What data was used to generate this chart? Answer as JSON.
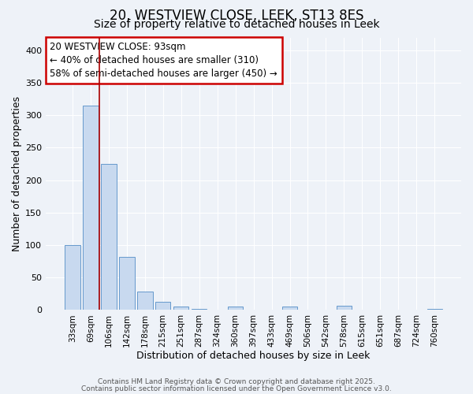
{
  "title": "20, WESTVIEW CLOSE, LEEK, ST13 8ES",
  "subtitle": "Size of property relative to detached houses in Leek",
  "xlabel": "Distribution of detached houses by size in Leek",
  "ylabel": "Number of detached properties",
  "categories": [
    "33sqm",
    "69sqm",
    "106sqm",
    "142sqm",
    "178sqm",
    "215sqm",
    "251sqm",
    "287sqm",
    "324sqm",
    "360sqm",
    "397sqm",
    "433sqm",
    "469sqm",
    "506sqm",
    "542sqm",
    "578sqm",
    "615sqm",
    "651sqm",
    "687sqm",
    "724sqm",
    "760sqm"
  ],
  "values": [
    100,
    315,
    225,
    82,
    28,
    12,
    5,
    2,
    0,
    5,
    0,
    0,
    5,
    0,
    0,
    6,
    0,
    0,
    0,
    0,
    2
  ],
  "bar_color": "#c8d9ef",
  "bar_edge_color": "#6699cc",
  "vline_x": 1.5,
  "vline_color": "#aa0000",
  "ylim": [
    0,
    420
  ],
  "yticks": [
    0,
    50,
    100,
    150,
    200,
    250,
    300,
    350,
    400
  ],
  "annotation_title": "20 WESTVIEW CLOSE: 93sqm",
  "annotation_line1": "← 40% of detached houses are smaller (310)",
  "annotation_line2": "58% of semi-detached houses are larger (450) →",
  "annotation_box_color": "#ffffff",
  "annotation_box_edge": "#cc0000",
  "footer1": "Contains HM Land Registry data © Crown copyright and database right 2025.",
  "footer2": "Contains public sector information licensed under the Open Government Licence v3.0.",
  "background_color": "#eef2f8",
  "title_fontsize": 12,
  "subtitle_fontsize": 10
}
